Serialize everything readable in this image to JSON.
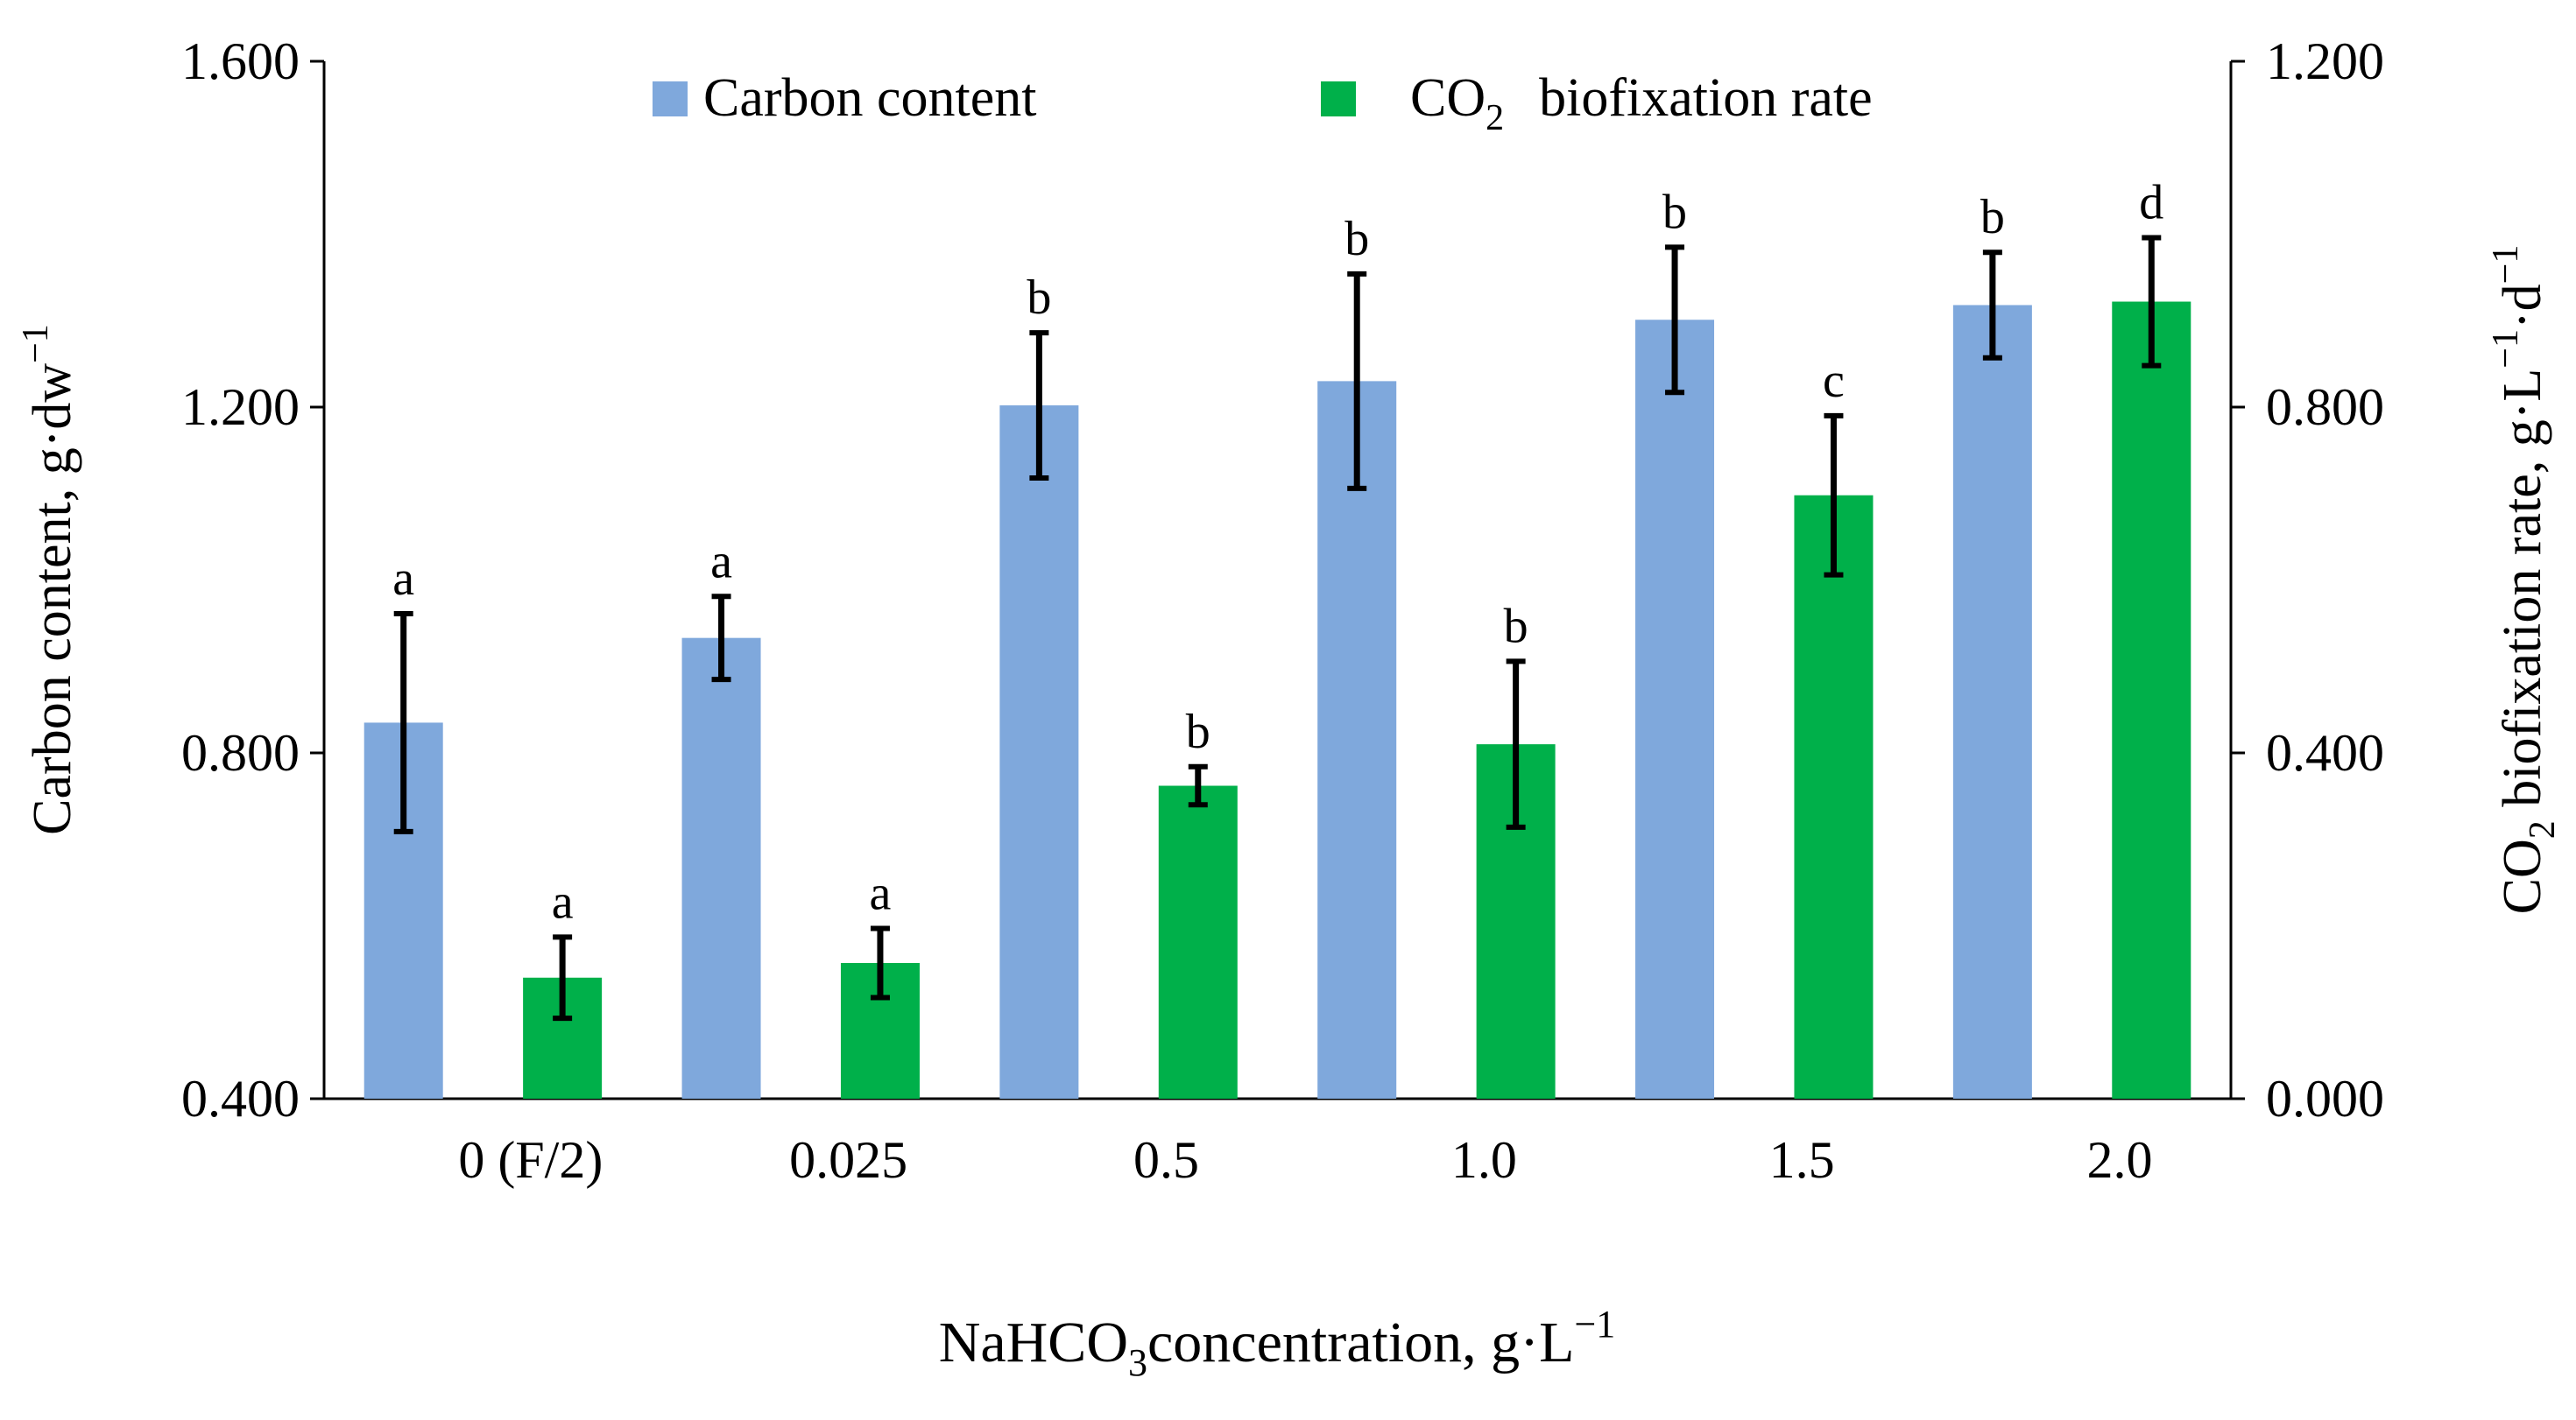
{
  "chart_data": {
    "type": "bar",
    "categories": [
      "0 (F/2)",
      "0.025",
      "0.5",
      "1.0",
      "1.5",
      "2.0"
    ],
    "series": [
      {
        "name": "Carbon content",
        "axis": "left",
        "color": "#7FA8DC",
        "values": [
          0.835,
          0.933,
          1.202,
          1.23,
          1.301,
          1.318
        ],
        "errors": [
          0.126,
          0.048,
          0.084,
          0.124,
          0.084,
          0.061
        ],
        "letters": [
          "a",
          "a",
          "b",
          "b",
          "b",
          "b"
        ]
      },
      {
        "name": "CO2 biofixation rate",
        "axis": "right",
        "color": "#00B04A",
        "values": [
          0.14,
          0.157,
          0.362,
          0.41,
          0.698,
          0.922
        ],
        "errors": [
          0.047,
          0.04,
          0.022,
          0.096,
          0.092,
          0.074
        ],
        "letters": [
          "a",
          "a",
          "b",
          "b",
          "c",
          "d"
        ]
      }
    ],
    "left_axis": {
      "ylim": [
        0.4,
        1.6
      ],
      "ticks": [
        "0.400",
        "0.800",
        "1.200",
        "1.600"
      ],
      "label_main": "Carbon content, g·dw",
      "label_sup": "−1"
    },
    "right_axis": {
      "ylim": [
        0.0,
        1.2
      ],
      "ticks": [
        "0.000",
        "0.400",
        "0.800",
        "1.200"
      ],
      "label_main1": "CO",
      "label_sub": "2",
      "label_main2": " biofixation rate, g·L",
      "label_sup1": "−1",
      "label_mid": "·d",
      "label_sup2": "−1"
    },
    "xaxis": {
      "label_main1": "NaHCO",
      "label_sub": "3",
      "label_main2": "concentration, g·L",
      "label_sup": "−1"
    },
    "legend": {
      "position": "top-center",
      "carbon_label": "Carbon content",
      "co2_label_main": "CO",
      "co2_label_sub": "2",
      "co2_label_rest": "biofixation rate"
    }
  }
}
